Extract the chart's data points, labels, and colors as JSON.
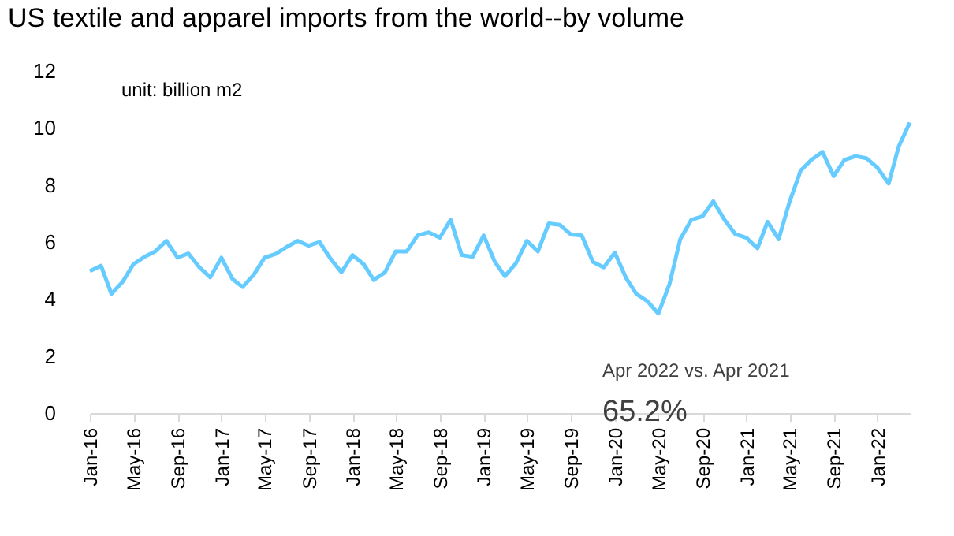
{
  "chart_data": {
    "type": "line",
    "title": "US textile and apparel imports from the world--by volume",
    "annotations": [
      "unit: billion m2",
      "Apr 2022 vs. Apr 2021",
      "65.2%"
    ],
    "x": [
      "2016-01",
      "2016-02",
      "2016-03",
      "2016-04",
      "2016-05",
      "2016-06",
      "2016-07",
      "2016-08",
      "2016-09",
      "2016-10",
      "2016-11",
      "2016-12",
      "2017-01",
      "2017-02",
      "2017-03",
      "2017-04",
      "2017-05",
      "2017-06",
      "2017-07",
      "2017-08",
      "2017-09",
      "2017-10",
      "2017-11",
      "2017-12",
      "2018-01",
      "2018-02",
      "2018-03",
      "2018-04",
      "2018-05",
      "2018-06",
      "2018-07",
      "2018-08",
      "2018-09",
      "2018-10",
      "2018-11",
      "2018-12",
      "2019-01",
      "2019-02",
      "2019-03",
      "2019-04",
      "2019-05",
      "2019-06",
      "2019-07",
      "2019-08",
      "2019-09",
      "2019-10",
      "2019-11",
      "2019-12",
      "2020-01",
      "2020-02",
      "2020-03",
      "2020-04",
      "2020-05",
      "2020-06",
      "2020-07",
      "2020-08",
      "2020-09",
      "2020-10",
      "2020-11",
      "2020-12",
      "2021-01",
      "2021-02",
      "2021-03",
      "2021-04",
      "2021-05",
      "2021-06",
      "2021-07",
      "2021-08",
      "2021-09",
      "2021-10",
      "2021-11",
      "2021-12",
      "2022-01",
      "2022-02",
      "2022-03",
      "2022-04"
    ],
    "series": [
      {
        "color": "#66ccff",
        "values": [
          4.98,
          5.17,
          4.18,
          4.6,
          5.22,
          5.48,
          5.67,
          6.04,
          5.45,
          5.6,
          5.11,
          4.76,
          5.45,
          4.7,
          4.42,
          4.85,
          5.45,
          5.58,
          5.82,
          6.04,
          5.87,
          6.0,
          5.41,
          4.94,
          5.54,
          5.22,
          4.67,
          4.93,
          5.67,
          5.67,
          6.23,
          6.34,
          6.15,
          6.78,
          5.54,
          5.48,
          6.23,
          5.3,
          4.8,
          5.26,
          6.04,
          5.67,
          6.65,
          6.6,
          6.26,
          6.23,
          5.3,
          5.11,
          5.63,
          4.74,
          4.18,
          3.92,
          3.49,
          4.52,
          6.1,
          6.78,
          6.9,
          7.43,
          6.78,
          6.28,
          6.15,
          5.78,
          6.71,
          6.1,
          7.4,
          8.5,
          8.88,
          9.16,
          8.31,
          8.88,
          9.01,
          8.94,
          8.6,
          8.05,
          9.35,
          10.19
        ]
      }
    ],
    "xlim": [
      "2016-01",
      "2022-04"
    ],
    "xticks": [
      {
        "value": "2016-01",
        "label": "Jan-16"
      },
      {
        "value": "2016-05",
        "label": "May-16"
      },
      {
        "value": "2016-09",
        "label": "Sep-16"
      },
      {
        "value": "2017-01",
        "label": "Jan-17"
      },
      {
        "value": "2017-05",
        "label": "May-17"
      },
      {
        "value": "2017-09",
        "label": "Sep-17"
      },
      {
        "value": "2018-01",
        "label": "Jan-18"
      },
      {
        "value": "2018-05",
        "label": "May-18"
      },
      {
        "value": "2018-09",
        "label": "Sep-18"
      },
      {
        "value": "2019-01",
        "label": "Jan-19"
      },
      {
        "value": "2019-05",
        "label": "May-19"
      },
      {
        "value": "2019-09",
        "label": "Sep-19"
      },
      {
        "value": "2020-01",
        "label": "Jan-20"
      },
      {
        "value": "2020-05",
        "label": "May-20"
      },
      {
        "value": "2020-09",
        "label": "Sep-20"
      },
      {
        "value": "2021-01",
        "label": "Jan-21"
      },
      {
        "value": "2021-05",
        "label": "May-21"
      },
      {
        "value": "2021-09",
        "label": "Sep-21"
      },
      {
        "value": "2022-01",
        "label": "Jan-22"
      }
    ],
    "ylim": [
      0,
      12
    ],
    "yticks": [
      0,
      2,
      4,
      6,
      8,
      10,
      12
    ],
    "grid": false,
    "marker": "none",
    "line_style": "solid"
  }
}
